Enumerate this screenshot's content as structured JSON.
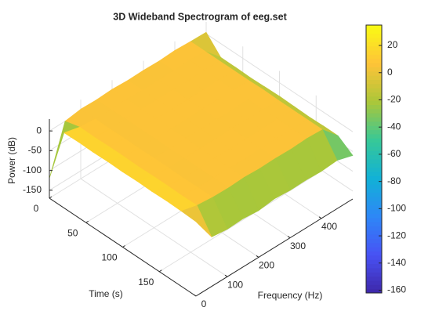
{
  "chart_data": {
    "type": "surface",
    "title": "3D Wideband Spectrogram of eeg.set",
    "xlabel": "Frequency (Hz)",
    "ylabel": "Time (s)",
    "zlabel": "Power (dB)",
    "x": [
      0,
      50,
      100,
      150,
      200,
      250,
      300,
      350,
      400,
      450,
      500
    ],
    "y": [
      0,
      20,
      40,
      60,
      80,
      100,
      120,
      140,
      160,
      180,
      200
    ],
    "z": [
      [
        -120,
        0,
        6,
        5,
        7,
        5,
        6,
        5,
        7,
        5,
        4
      ],
      [
        20,
        10,
        6,
        5,
        7,
        5,
        6,
        5,
        7,
        5,
        -35
      ],
      [
        21,
        9,
        5,
        6,
        6,
        5,
        7,
        5,
        6,
        5,
        -35
      ],
      [
        20,
        10,
        6,
        5,
        7,
        6,
        6,
        5,
        7,
        5,
        -36
      ],
      [
        21,
        10,
        5,
        6,
        6,
        5,
        7,
        6,
        6,
        5,
        -35
      ],
      [
        20,
        9,
        6,
        5,
        7,
        5,
        6,
        5,
        7,
        6,
        -34
      ],
      [
        21,
        10,
        6,
        6,
        6,
        5,
        7,
        5,
        6,
        5,
        -35
      ],
      [
        20,
        10,
        5,
        5,
        7,
        6,
        6,
        5,
        7,
        5,
        -36
      ],
      [
        21,
        9,
        6,
        6,
        6,
        5,
        7,
        6,
        6,
        5,
        -35
      ],
      [
        20,
        10,
        6,
        5,
        7,
        5,
        6,
        5,
        7,
        5,
        -35
      ],
      [
        18,
        -45,
        -50,
        -48,
        -52,
        -47,
        -50,
        -49,
        -51,
        -48,
        -60
      ]
    ],
    "xlim": [
      0,
      500
    ],
    "ylim": [
      0,
      200
    ],
    "zlim": [
      -170,
      30
    ],
    "xticks": [
      0,
      100,
      200,
      300,
      400
    ],
    "yticks": [
      0,
      50,
      100,
      150
    ],
    "zticks": [
      -150,
      -100,
      -50,
      0
    ],
    "clim": [
      -162,
      35
    ],
    "colorbar_ticks": [
      -160,
      -140,
      -120,
      -100,
      -80,
      -60,
      -40,
      -20,
      0,
      20
    ],
    "colormap": "parula",
    "grid": true
  }
}
